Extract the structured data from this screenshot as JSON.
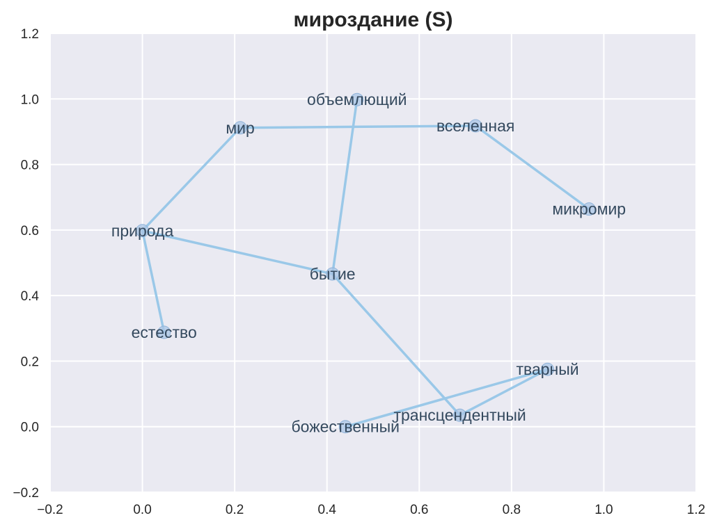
{
  "chart_data": {
    "type": "scatter",
    "title": "мироздание (S)",
    "xlim": [
      -0.2,
      1.2
    ],
    "ylim": [
      -0.2,
      1.2
    ],
    "xticks": [
      "−0.2",
      "0.0",
      "0.2",
      "0.4",
      "0.6",
      "0.8",
      "1.0",
      "1.2"
    ],
    "yticks": [
      "−0.2",
      "0.0",
      "0.2",
      "0.4",
      "0.6",
      "0.8",
      "1.0",
      "1.2"
    ],
    "xtick_values": [
      -0.2,
      0.0,
      0.2,
      0.4,
      0.6,
      0.8,
      1.0,
      1.2
    ],
    "ytick_values": [
      -0.2,
      0.0,
      0.2,
      0.4,
      0.6,
      0.8,
      1.0,
      1.2
    ],
    "grid": true,
    "colors": {
      "background": "#eaeaf2",
      "grid": "#ffffff",
      "line": "#9ac8e8",
      "marker": "#a9c6e6",
      "label": "#34495e"
    },
    "points": [
      {
        "label": "объемлющий",
        "x": 0.465,
        "y": 0.998
      },
      {
        "label": "мир",
        "x": 0.212,
        "y": 0.912
      },
      {
        "label": "вселенная",
        "x": 0.722,
        "y": 0.918
      },
      {
        "label": "микромир",
        "x": 0.968,
        "y": 0.664
      },
      {
        "label": "природа",
        "x": 0.0,
        "y": 0.598
      },
      {
        "label": "бытие",
        "x": 0.412,
        "y": 0.466
      },
      {
        "label": "естество",
        "x": 0.047,
        "y": 0.288
      },
      {
        "label": "тварный",
        "x": 0.878,
        "y": 0.175
      },
      {
        "label": "трансцендентный",
        "x": 0.688,
        "y": 0.035
      },
      {
        "label": "божественный",
        "x": 0.44,
        "y": 0.0
      }
    ],
    "edges": [
      [
        "мир",
        "вселенная"
      ],
      [
        "вселенная",
        "микромир"
      ],
      [
        "мир",
        "природа"
      ],
      [
        "природа",
        "естество"
      ],
      [
        "природа",
        "бытие"
      ],
      [
        "бытие",
        "объемлющий"
      ],
      [
        "бытие",
        "трансцендентный"
      ],
      [
        "трансцендентный",
        "тварный"
      ],
      [
        "тварный",
        "божественный"
      ]
    ]
  }
}
